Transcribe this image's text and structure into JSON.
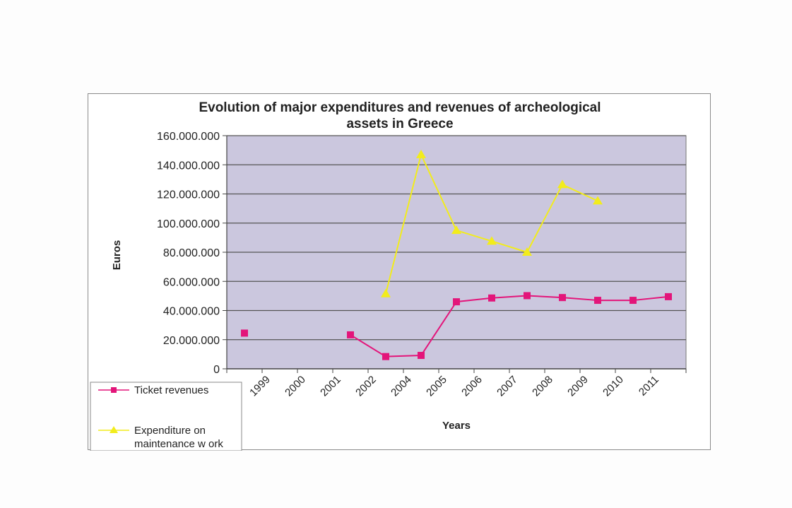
{
  "chart_data": {
    "type": "line",
    "title": "Evolution of major expenditures and revenues of archeological assets in Greece",
    "title_lines": [
      "Evolution of major expenditures and revenues of archeological",
      "assets in Greece"
    ],
    "xlabel": "Years",
    "ylabel": "Euros",
    "ylim": [
      0,
      160000000
    ],
    "y_ticks": [
      0,
      20000000,
      40000000,
      60000000,
      80000000,
      100000000,
      120000000,
      140000000,
      160000000
    ],
    "y_tick_labels": [
      "0",
      "20.000.000",
      "40.000.000",
      "60.000.000",
      "80.000.000",
      "100.000.000",
      "120.000.000",
      "140.000.000",
      "160.000.000"
    ],
    "category_slots": 13,
    "categories": [
      "1999",
      "2000",
      "2001",
      "2002",
      "2004",
      "2005",
      "2006",
      "2007",
      "2008",
      "2009",
      "2010",
      "2011"
    ],
    "grid": true,
    "legend_position": "bottom-left",
    "plot_background": "#cbc7de",
    "series": [
      {
        "name": "Ticket revenues",
        "color": "#e3157a",
        "marker": "square",
        "slot_values": [
          24500000,
          null,
          null,
          23300000,
          8400000,
          9200000,
          46000000,
          48600000,
          50200000,
          48900000,
          47000000,
          47000000,
          49500000
        ]
      },
      {
        "name": "Expenditure on maintenance work",
        "legend_lines": [
          "Expenditure on",
          "maintenance w ork"
        ],
        "color": "#f2ec1c",
        "marker": "triangle",
        "slot_values": [
          null,
          null,
          null,
          null,
          51500000,
          147000000,
          95000000,
          87600000,
          80000000,
          126400000,
          115200000,
          null,
          null
        ]
      }
    ]
  }
}
